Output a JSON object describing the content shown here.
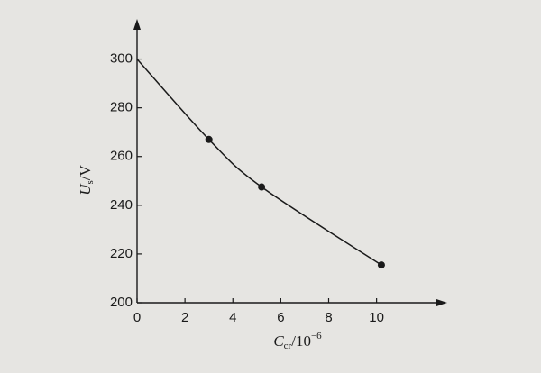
{
  "chart_data": {
    "type": "line",
    "x_label": {
      "symbol": "C",
      "subscript": "cr",
      "unit": "/10",
      "superscript": "−6"
    },
    "y_label": {
      "symbol": "U",
      "subscript": "s",
      "unit": "/V"
    },
    "series": [
      {
        "x": [
          0,
          3,
          5.2,
          10.2
        ],
        "values": [
          300,
          267,
          247.5,
          215.5
        ],
        "markers": [
          false,
          true,
          true,
          true
        ],
        "color": "#1a1a1a",
        "smooth": true
      }
    ],
    "xlim": [
      0,
      12.8
    ],
    "xticks": [
      0,
      2,
      4,
      6,
      8,
      10
    ],
    "ylim": [
      200,
      315
    ],
    "yticks": [
      200,
      220,
      240,
      260,
      280,
      300
    ],
    "grid": false
  }
}
